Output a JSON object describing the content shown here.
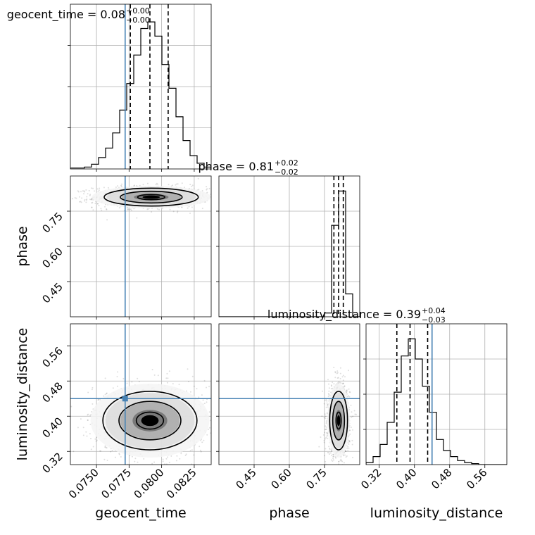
{
  "chart_data": {
    "type": "corner",
    "parameters": [
      "geocent_time",
      "phase",
      "luminosity_distance"
    ],
    "truths": {
      "geocent_time": 0.0772,
      "phase": null,
      "luminosity_distance": 0.44
    },
    "truth_color": "#4682b4",
    "titles": [
      {
        "param": "geocent_time",
        "text": "geocent_time = 0.08",
        "upper": "+0.00",
        "lower": "−0.00"
      },
      {
        "param": "phase",
        "text": "phase = 0.81",
        "upper": "+0.02",
        "lower": "−0.02"
      },
      {
        "param": "luminosity_distance",
        "text": "luminosity_distance = 0.39",
        "upper": "+0.04",
        "lower": "−0.03"
      }
    ],
    "axes": {
      "geocent_time": {
        "range": [
          0.073,
          0.0838
        ],
        "ticks": [
          "0.0750",
          "0.0775",
          "0.0800",
          "0.0825"
        ],
        "tick_values": [
          0.075,
          0.0775,
          0.08,
          0.0825
        ]
      },
      "phase": {
        "range": [
          0.3,
          0.9
        ],
        "ticks": [
          "0.45",
          "0.60",
          "0.75"
        ],
        "tick_values": [
          0.45,
          0.6,
          0.75
        ]
      },
      "luminosity_distance": {
        "range": [
          0.29,
          0.61
        ],
        "ticks": [
          "0.32",
          "0.40",
          "0.48",
          "0.56"
        ],
        "tick_values": [
          0.32,
          0.4,
          0.48,
          0.56
        ]
      }
    },
    "marginals": {
      "geocent_time": {
        "bin_edges": [
          0.073,
          0.07354,
          0.07408,
          0.07462,
          0.07516,
          0.0757,
          0.07624,
          0.07678,
          0.07732,
          0.07786,
          0.0784,
          0.07894,
          0.07948,
          0.08002,
          0.08056,
          0.0811,
          0.08164,
          0.08218,
          0.08272,
          0.08326,
          0.0838
        ],
        "counts": [
          1,
          1,
          2,
          5,
          12,
          22,
          38,
          62,
          90,
          120,
          148,
          155,
          140,
          110,
          85,
          55,
          30,
          14,
          6,
          2
        ],
        "quantiles": [
          0.0776,
          0.0791,
          0.0805
        ]
      },
      "phase": {
        "bin_edges": [
          0.3,
          0.33,
          0.36,
          0.39,
          0.42,
          0.45,
          0.48,
          0.51,
          0.54,
          0.57,
          0.6,
          0.63,
          0.66,
          0.69,
          0.72,
          0.75,
          0.78,
          0.81,
          0.84,
          0.87,
          0.9
        ],
        "counts": [
          0,
          0,
          0,
          0,
          0,
          0,
          0,
          0,
          0,
          0,
          0,
          0,
          0,
          0,
          0,
          5,
          120,
          165,
          30,
          0
        ],
        "quantiles": [
          0.79,
          0.81,
          0.83
        ]
      },
      "luminosity_distance": {
        "bin_edges": [
          0.29,
          0.306,
          0.322,
          0.338,
          0.354,
          0.37,
          0.386,
          0.402,
          0.418,
          0.434,
          0.45,
          0.466,
          0.482,
          0.498,
          0.514,
          0.53,
          0.546,
          0.562,
          0.578,
          0.594,
          0.61
        ],
        "counts": [
          2,
          8,
          20,
          42,
          72,
          108,
          125,
          105,
          78,
          52,
          25,
          14,
          8,
          4,
          2,
          1,
          0,
          0,
          0,
          0
        ],
        "quantiles": [
          0.36,
          0.39,
          0.43
        ]
      }
    },
    "joint": {
      "geocent_time_phase": {
        "mean": [
          0.0792,
          0.81
        ],
        "sd": [
          0.0019,
          0.02
        ]
      },
      "geocent_time_luminosity_distance": {
        "mean": [
          0.0791,
          0.39
        ],
        "sd": [
          0.0019,
          0.035
        ]
      },
      "phase_luminosity_distance": {
        "mean": [
          0.81,
          0.39
        ],
        "sd": [
          0.02,
          0.035
        ]
      }
    }
  }
}
